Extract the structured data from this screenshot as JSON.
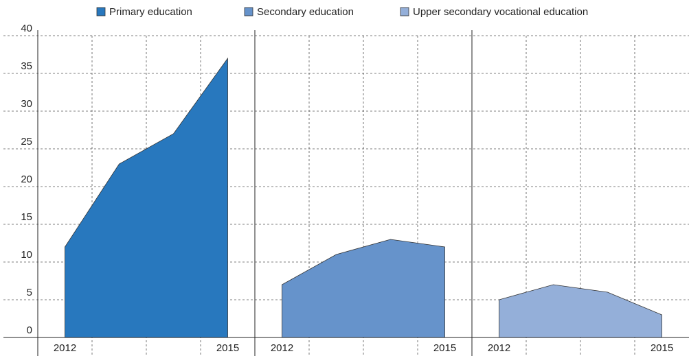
{
  "chart_data": {
    "type": "area",
    "categories": [
      "2012",
      null,
      null,
      "2015"
    ],
    "series": [
      {
        "name": "Primary education",
        "color": "#2878be",
        "values": [
          12,
          23,
          27,
          37
        ]
      },
      {
        "name": "Secondary education",
        "color": "#6693cb",
        "values": [
          7,
          11,
          13,
          12
        ]
      },
      {
        "name": "Upper secondary vocational education",
        "color": "#94afd9",
        "values": [
          5,
          7,
          6,
          3
        ]
      }
    ],
    "ylim": [
      0,
      40
    ],
    "yticks": [
      0,
      5,
      10,
      15,
      20,
      25,
      30,
      35,
      40
    ],
    "grid": true,
    "legend": "top"
  }
}
